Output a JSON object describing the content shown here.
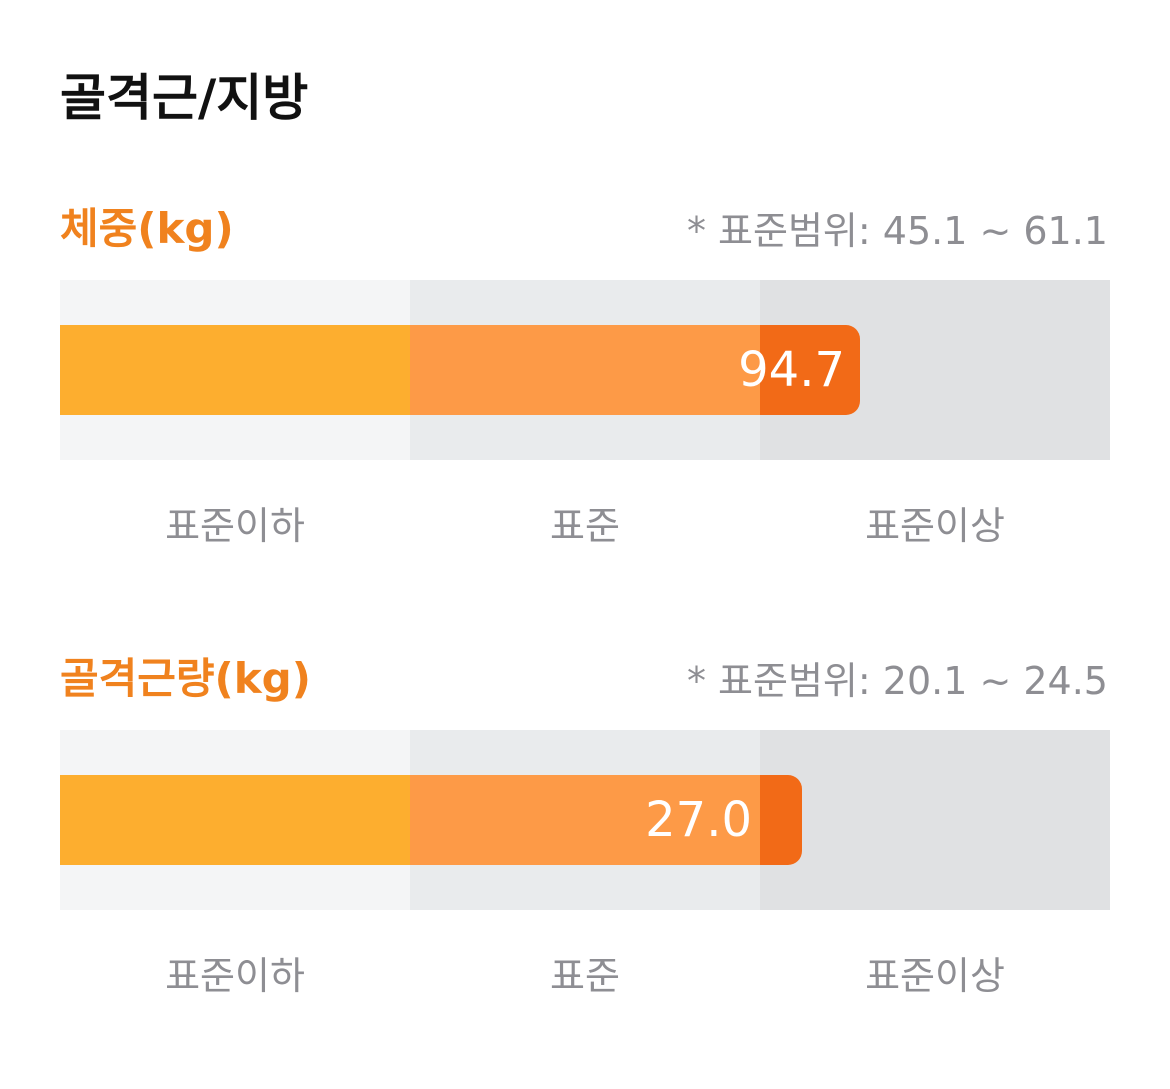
{
  "header": {
    "title": "골격근/지방"
  },
  "sections": [
    {
      "label": "체중(kg)",
      "range": "* 표준범위: 45.1 ~ 61.1",
      "value": "94.7",
      "zones": [
        "표준이하",
        "표준",
        "표준이상"
      ]
    },
    {
      "label": "골격근량(kg)",
      "range": "* 표준범위: 20.1 ~ 24.5",
      "value": "27.0",
      "zones": [
        "표준이하",
        "표준",
        "표준이상"
      ]
    }
  ]
}
